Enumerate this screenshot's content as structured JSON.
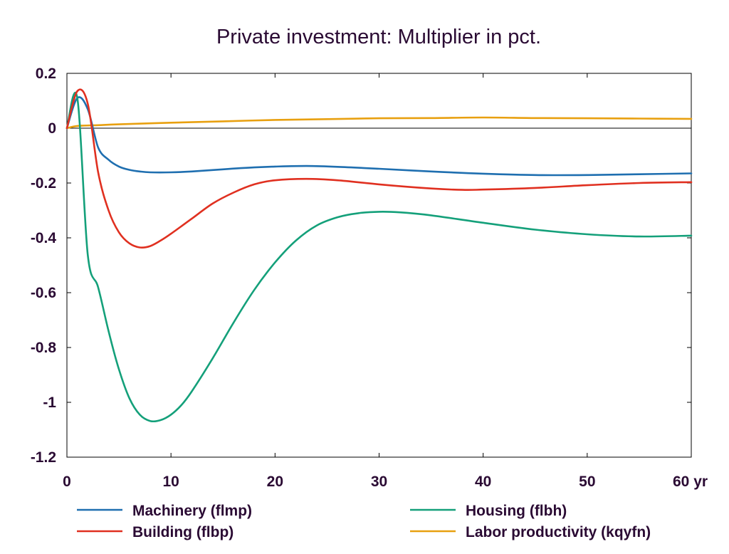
{
  "chart_data": {
    "type": "line",
    "title": "Private investment: Multiplier in pct.",
    "xlim": [
      0,
      60
    ],
    "ylim": [
      -1.2,
      0.2
    ],
    "x_ticks": [
      0,
      10,
      20,
      30,
      40,
      50,
      60
    ],
    "x_tick_labels": [
      "0",
      "10",
      "20",
      "30",
      "40",
      "50",
      "60 yr"
    ],
    "y_ticks": [
      0.2,
      0,
      -0.2,
      -0.4,
      -0.6,
      -0.8,
      -1,
      -1.2
    ],
    "y_tick_labels": [
      "0.2",
      "0",
      "-0.2",
      "-0.4",
      "-0.6",
      "-0.8",
      "-1",
      "-1.2"
    ],
    "grid": false,
    "legend_position": "bottom",
    "series": [
      {
        "name": "Machinery (flmp)",
        "color": "#1f6fb0",
        "points": [
          [
            0,
            0
          ],
          [
            1,
            0.11
          ],
          [
            2,
            0.07
          ],
          [
            3,
            -0.07
          ],
          [
            4,
            -0.115
          ],
          [
            5,
            -0.14
          ],
          [
            6,
            -0.152
          ],
          [
            7,
            -0.158
          ],
          [
            8,
            -0.161
          ],
          [
            10,
            -0.161
          ],
          [
            12,
            -0.158
          ],
          [
            15,
            -0.15
          ],
          [
            18,
            -0.143
          ],
          [
            20,
            -0.14
          ],
          [
            23,
            -0.138
          ],
          [
            26,
            -0.141
          ],
          [
            30,
            -0.148
          ],
          [
            35,
            -0.158
          ],
          [
            40,
            -0.166
          ],
          [
            45,
            -0.171
          ],
          [
            50,
            -0.171
          ],
          [
            55,
            -0.168
          ],
          [
            60,
            -0.165
          ]
        ]
      },
      {
        "name": "Building (flbp)",
        "color": "#e03020",
        "points": [
          [
            0,
            0
          ],
          [
            1,
            0.135
          ],
          [
            2,
            0.09
          ],
          [
            3,
            -0.16
          ],
          [
            4,
            -0.3
          ],
          [
            5,
            -0.38
          ],
          [
            6,
            -0.42
          ],
          [
            7,
            -0.435
          ],
          [
            8,
            -0.43
          ],
          [
            9,
            -0.41
          ],
          [
            10,
            -0.385
          ],
          [
            12,
            -0.33
          ],
          [
            14,
            -0.275
          ],
          [
            16,
            -0.235
          ],
          [
            18,
            -0.205
          ],
          [
            20,
            -0.19
          ],
          [
            23,
            -0.185
          ],
          [
            26,
            -0.19
          ],
          [
            30,
            -0.205
          ],
          [
            35,
            -0.22
          ],
          [
            38,
            -0.225
          ],
          [
            40,
            -0.224
          ],
          [
            45,
            -0.218
          ],
          [
            50,
            -0.208
          ],
          [
            55,
            -0.2
          ],
          [
            60,
            -0.197
          ]
        ]
      },
      {
        "name": "Housing (flbh)",
        "color": "#14a07a",
        "points": [
          [
            0,
            0
          ],
          [
            1,
            0.11
          ],
          [
            2,
            -0.46
          ],
          [
            3,
            -0.58
          ],
          [
            4,
            -0.74
          ],
          [
            5,
            -0.88
          ],
          [
            6,
            -0.985
          ],
          [
            7,
            -1.045
          ],
          [
            8,
            -1.068
          ],
          [
            9,
            -1.065
          ],
          [
            10,
            -1.045
          ],
          [
            11,
            -1.01
          ],
          [
            12,
            -0.96
          ],
          [
            14,
            -0.84
          ],
          [
            16,
            -0.71
          ],
          [
            18,
            -0.59
          ],
          [
            20,
            -0.49
          ],
          [
            22,
            -0.41
          ],
          [
            24,
            -0.355
          ],
          [
            26,
            -0.325
          ],
          [
            28,
            -0.31
          ],
          [
            30,
            -0.305
          ],
          [
            32,
            -0.307
          ],
          [
            35,
            -0.318
          ],
          [
            40,
            -0.345
          ],
          [
            45,
            -0.37
          ],
          [
            50,
            -0.387
          ],
          [
            55,
            -0.395
          ],
          [
            60,
            -0.392
          ]
        ]
      },
      {
        "name": "Labor productivity (kqyfn)",
        "color": "#e8a010",
        "points": [
          [
            0,
            0
          ],
          [
            1,
            0.008
          ],
          [
            3,
            0.011
          ],
          [
            5,
            0.014
          ],
          [
            10,
            0.02
          ],
          [
            15,
            0.025
          ],
          [
            20,
            0.03
          ],
          [
            25,
            0.033
          ],
          [
            30,
            0.036
          ],
          [
            35,
            0.037
          ],
          [
            40,
            0.039
          ],
          [
            45,
            0.037
          ],
          [
            50,
            0.036
          ],
          [
            55,
            0.035
          ],
          [
            60,
            0.034
          ]
        ]
      }
    ]
  }
}
